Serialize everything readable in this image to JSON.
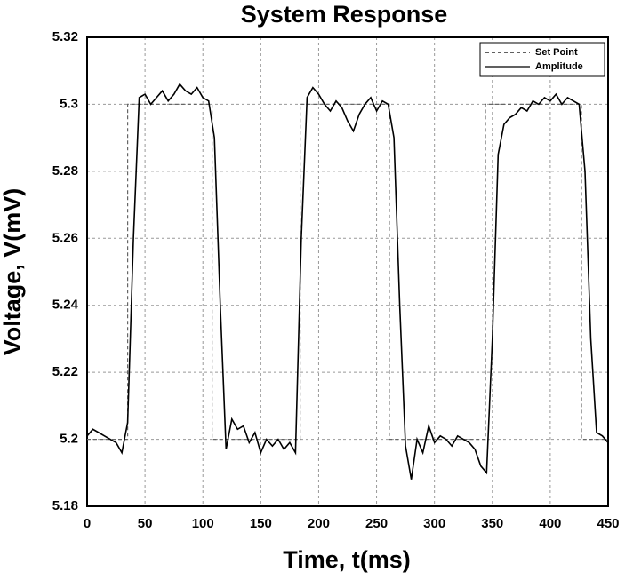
{
  "chart_data": {
    "type": "line",
    "title": "System Response",
    "xlabel": "Time, t(ms)",
    "ylabel": "Voltage, V(mV)",
    "xlim": [
      0,
      450
    ],
    "xticks": [
      0,
      50,
      100,
      150,
      200,
      250,
      300,
      350,
      400,
      450
    ],
    "ylim": [
      5.18,
      5.32
    ],
    "yticks": [
      5.18,
      5.2,
      5.22,
      5.24,
      5.26,
      5.28,
      5.3,
      5.32
    ],
    "grid": true,
    "legend": "upper right",
    "series": [
      {
        "name": "Set Point",
        "color": "#666666",
        "dashed": true,
        "x": [
          0,
          35,
          35,
          108,
          108,
          184,
          184,
          261,
          261,
          344,
          344,
          427,
          427,
          450
        ],
        "values": [
          5.2,
          5.2,
          5.3,
          5.3,
          5.2,
          5.2,
          5.3,
          5.3,
          5.2,
          5.2,
          5.3,
          5.3,
          5.2,
          5.2
        ]
      },
      {
        "name": "Amplitude",
        "color": "#000000",
        "dashed": false,
        "x": [
          0,
          5,
          10,
          15,
          20,
          25,
          30,
          35,
          40,
          45,
          50,
          55,
          60,
          65,
          70,
          75,
          80,
          85,
          90,
          95,
          100,
          105,
          110,
          115,
          120,
          125,
          130,
          135,
          140,
          145,
          150,
          155,
          160,
          165,
          170,
          175,
          180,
          185,
          190,
          195,
          200,
          205,
          210,
          215,
          220,
          225,
          230,
          235,
          240,
          245,
          250,
          255,
          260,
          265,
          270,
          275,
          280,
          285,
          290,
          295,
          300,
          305,
          310,
          315,
          320,
          325,
          330,
          335,
          340,
          345,
          350,
          355,
          360,
          365,
          370,
          375,
          380,
          385,
          390,
          395,
          400,
          405,
          410,
          415,
          420,
          425,
          430,
          435,
          440,
          445,
          450
        ],
        "values": [
          5.201,
          5.203,
          5.202,
          5.201,
          5.2,
          5.199,
          5.196,
          5.205,
          5.26,
          5.302,
          5.303,
          5.3,
          5.302,
          5.304,
          5.301,
          5.303,
          5.306,
          5.304,
          5.303,
          5.305,
          5.302,
          5.301,
          5.29,
          5.24,
          5.197,
          5.206,
          5.203,
          5.204,
          5.199,
          5.202,
          5.196,
          5.2,
          5.198,
          5.2,
          5.197,
          5.199,
          5.196,
          5.26,
          5.302,
          5.305,
          5.303,
          5.3,
          5.298,
          5.301,
          5.299,
          5.295,
          5.292,
          5.297,
          5.3,
          5.302,
          5.298,
          5.301,
          5.3,
          5.29,
          5.24,
          5.198,
          5.188,
          5.2,
          5.196,
          5.204,
          5.199,
          5.201,
          5.2,
          5.198,
          5.201,
          5.2,
          5.199,
          5.197,
          5.192,
          5.19,
          5.23,
          5.285,
          5.294,
          5.296,
          5.297,
          5.299,
          5.298,
          5.301,
          5.3,
          5.302,
          5.301,
          5.303,
          5.3,
          5.302,
          5.301,
          5.3,
          5.28,
          5.23,
          5.202,
          5.201,
          5.199
        ]
      }
    ]
  }
}
